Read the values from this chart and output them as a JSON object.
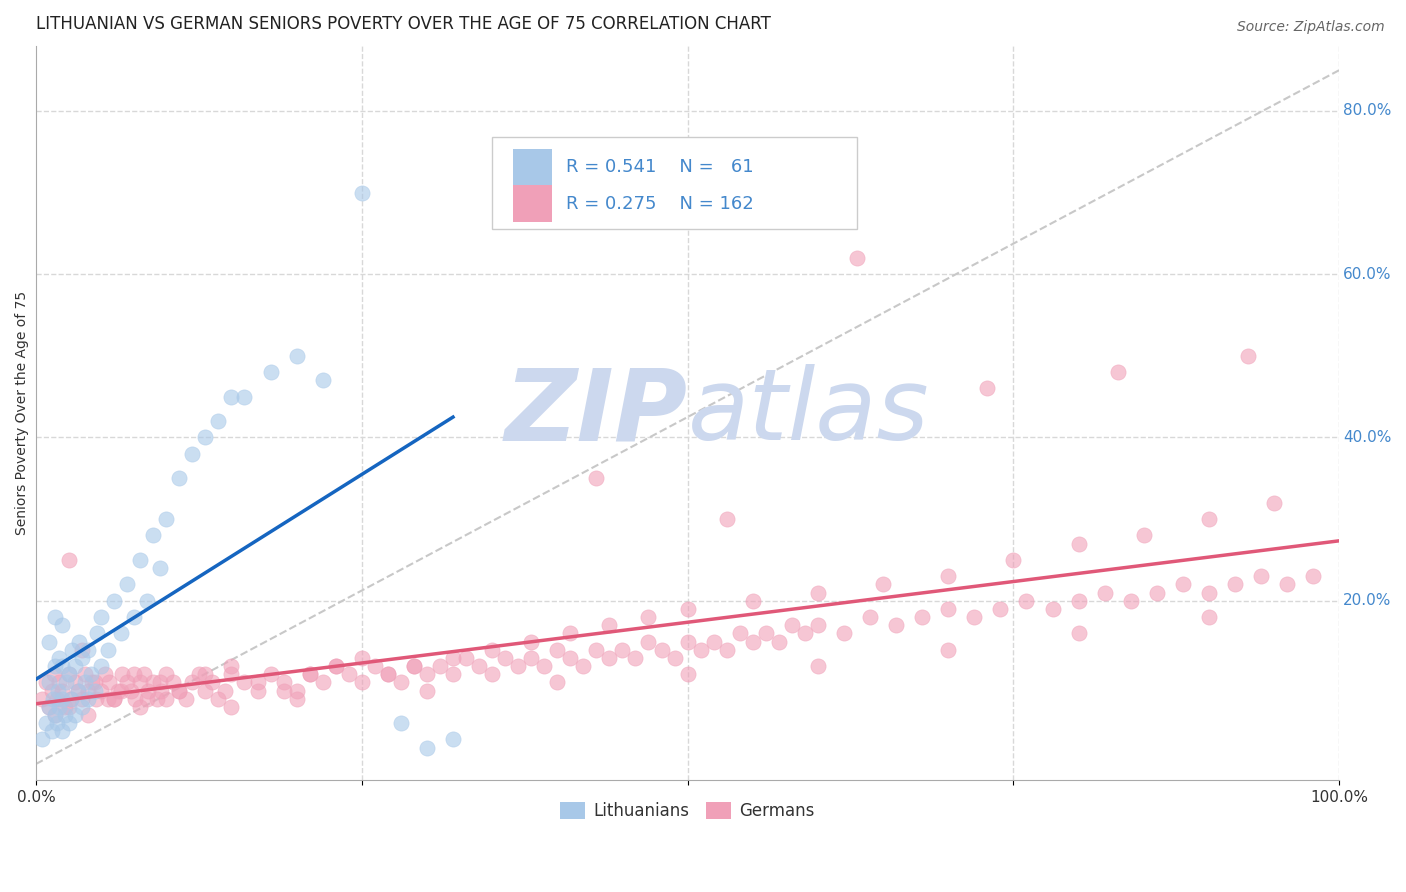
{
  "title": "LITHUANIAN VS GERMAN SENIORS POVERTY OVER THE AGE OF 75 CORRELATION CHART",
  "source": "Source: ZipAtlas.com",
  "ylabel": "Seniors Poverty Over the Age of 75",
  "xlim": [
    0.0,
    1.0
  ],
  "ylim": [
    -0.02,
    0.88
  ],
  "xticks": [
    0.0,
    0.25,
    0.5,
    0.75,
    1.0
  ],
  "xticklabels": [
    "0.0%",
    "",
    "",
    "",
    "100.0%"
  ],
  "ytick_positions": [
    0.2,
    0.4,
    0.6,
    0.8
  ],
  "ytick_labels": [
    "20.0%",
    "40.0%",
    "60.0%",
    "80.0%"
  ],
  "color_lit": "#a8c8e8",
  "color_ger": "#f0a0b8",
  "color_line_lit": "#1565C0",
  "color_line_ger": "#e05878",
  "color_diagonal": "#c8c8c8",
  "color_grid": "#d8d8d8",
  "color_ytick": "#4488cc",
  "color_xtick": "#333333",
  "watermark_color": "#ccd8ee",
  "background_color": "#ffffff",
  "title_fontsize": 12,
  "tick_fontsize": 11,
  "ylabel_fontsize": 10,
  "source_fontsize": 10,
  "legend_fontsize": 13,
  "lit_x": [
    0.005,
    0.008,
    0.01,
    0.01,
    0.01,
    0.012,
    0.013,
    0.015,
    0.015,
    0.015,
    0.016,
    0.017,
    0.018,
    0.018,
    0.02,
    0.02,
    0.02,
    0.02,
    0.022,
    0.023,
    0.025,
    0.025,
    0.027,
    0.028,
    0.03,
    0.03,
    0.032,
    0.033,
    0.035,
    0.035,
    0.038,
    0.04,
    0.04,
    0.042,
    0.045,
    0.047,
    0.05,
    0.05,
    0.055,
    0.06,
    0.065,
    0.07,
    0.075,
    0.08,
    0.085,
    0.09,
    0.095,
    0.1,
    0.11,
    0.12,
    0.13,
    0.14,
    0.15,
    0.16,
    0.18,
    0.2,
    0.22,
    0.25,
    0.28,
    0.3,
    0.32
  ],
  "lit_y": [
    0.03,
    0.05,
    0.07,
    0.1,
    0.15,
    0.04,
    0.08,
    0.06,
    0.12,
    0.18,
    0.05,
    0.09,
    0.07,
    0.13,
    0.04,
    0.08,
    0.12,
    0.17,
    0.06,
    0.1,
    0.05,
    0.11,
    0.08,
    0.14,
    0.06,
    0.12,
    0.09,
    0.15,
    0.07,
    0.13,
    0.1,
    0.08,
    0.14,
    0.11,
    0.09,
    0.16,
    0.12,
    0.18,
    0.14,
    0.2,
    0.16,
    0.22,
    0.18,
    0.25,
    0.2,
    0.28,
    0.24,
    0.3,
    0.35,
    0.38,
    0.4,
    0.42,
    0.45,
    0.45,
    0.48,
    0.5,
    0.47,
    0.7,
    0.05,
    0.02,
    0.03
  ],
  "ger_x": [
    0.005,
    0.008,
    0.01,
    0.012,
    0.014,
    0.016,
    0.018,
    0.02,
    0.022,
    0.025,
    0.027,
    0.03,
    0.032,
    0.035,
    0.038,
    0.04,
    0.043,
    0.046,
    0.05,
    0.053,
    0.056,
    0.06,
    0.063,
    0.066,
    0.07,
    0.073,
    0.076,
    0.08,
    0.083,
    0.086,
    0.09,
    0.093,
    0.096,
    0.1,
    0.105,
    0.11,
    0.115,
    0.12,
    0.125,
    0.13,
    0.135,
    0.14,
    0.145,
    0.15,
    0.16,
    0.17,
    0.18,
    0.19,
    0.2,
    0.21,
    0.22,
    0.23,
    0.24,
    0.25,
    0.26,
    0.27,
    0.28,
    0.29,
    0.3,
    0.31,
    0.32,
    0.33,
    0.34,
    0.35,
    0.36,
    0.37,
    0.38,
    0.39,
    0.4,
    0.41,
    0.42,
    0.43,
    0.44,
    0.45,
    0.46,
    0.47,
    0.48,
    0.49,
    0.5,
    0.51,
    0.52,
    0.53,
    0.54,
    0.55,
    0.56,
    0.57,
    0.58,
    0.59,
    0.6,
    0.62,
    0.64,
    0.66,
    0.68,
    0.7,
    0.72,
    0.74,
    0.76,
    0.78,
    0.8,
    0.82,
    0.84,
    0.86,
    0.88,
    0.9,
    0.92,
    0.94,
    0.96,
    0.98,
    0.025,
    0.035,
    0.045,
    0.055,
    0.065,
    0.075,
    0.085,
    0.095,
    0.11,
    0.13,
    0.15,
    0.17,
    0.19,
    0.21,
    0.23,
    0.25,
    0.27,
    0.29,
    0.32,
    0.35,
    0.38,
    0.41,
    0.44,
    0.47,
    0.5,
    0.55,
    0.6,
    0.65,
    0.7,
    0.75,
    0.8,
    0.85,
    0.9,
    0.95,
    0.015,
    0.025,
    0.04,
    0.06,
    0.08,
    0.1,
    0.15,
    0.2,
    0.3,
    0.4,
    0.5,
    0.6,
    0.7,
    0.8,
    0.9,
    0.73,
    0.83,
    0.93,
    0.63,
    0.53,
    0.43
  ],
  "ger_y": [
    0.08,
    0.1,
    0.07,
    0.09,
    0.11,
    0.08,
    0.1,
    0.09,
    0.07,
    0.11,
    0.08,
    0.1,
    0.09,
    0.08,
    0.11,
    0.09,
    0.1,
    0.08,
    0.09,
    0.11,
    0.1,
    0.08,
    0.09,
    0.11,
    0.1,
    0.09,
    0.08,
    0.1,
    0.11,
    0.09,
    0.1,
    0.08,
    0.09,
    0.11,
    0.1,
    0.09,
    0.08,
    0.1,
    0.11,
    0.09,
    0.1,
    0.08,
    0.09,
    0.11,
    0.1,
    0.09,
    0.11,
    0.1,
    0.09,
    0.11,
    0.1,
    0.12,
    0.11,
    0.1,
    0.12,
    0.11,
    0.1,
    0.12,
    0.11,
    0.12,
    0.11,
    0.13,
    0.12,
    0.11,
    0.13,
    0.12,
    0.13,
    0.12,
    0.14,
    0.13,
    0.12,
    0.14,
    0.13,
    0.14,
    0.13,
    0.15,
    0.14,
    0.13,
    0.15,
    0.14,
    0.15,
    0.14,
    0.16,
    0.15,
    0.16,
    0.15,
    0.17,
    0.16,
    0.17,
    0.16,
    0.18,
    0.17,
    0.18,
    0.19,
    0.18,
    0.19,
    0.2,
    0.19,
    0.2,
    0.21,
    0.2,
    0.21,
    0.22,
    0.21,
    0.22,
    0.23,
    0.22,
    0.23,
    0.25,
    0.14,
    0.1,
    0.08,
    0.09,
    0.11,
    0.08,
    0.1,
    0.09,
    0.11,
    0.12,
    0.1,
    0.09,
    0.11,
    0.12,
    0.13,
    0.11,
    0.12,
    0.13,
    0.14,
    0.15,
    0.16,
    0.17,
    0.18,
    0.19,
    0.2,
    0.21,
    0.22,
    0.23,
    0.25,
    0.27,
    0.28,
    0.3,
    0.32,
    0.06,
    0.07,
    0.06,
    0.08,
    0.07,
    0.08,
    0.07,
    0.08,
    0.09,
    0.1,
    0.11,
    0.12,
    0.14,
    0.16,
    0.18,
    0.46,
    0.48,
    0.5,
    0.62,
    0.3,
    0.35
  ]
}
